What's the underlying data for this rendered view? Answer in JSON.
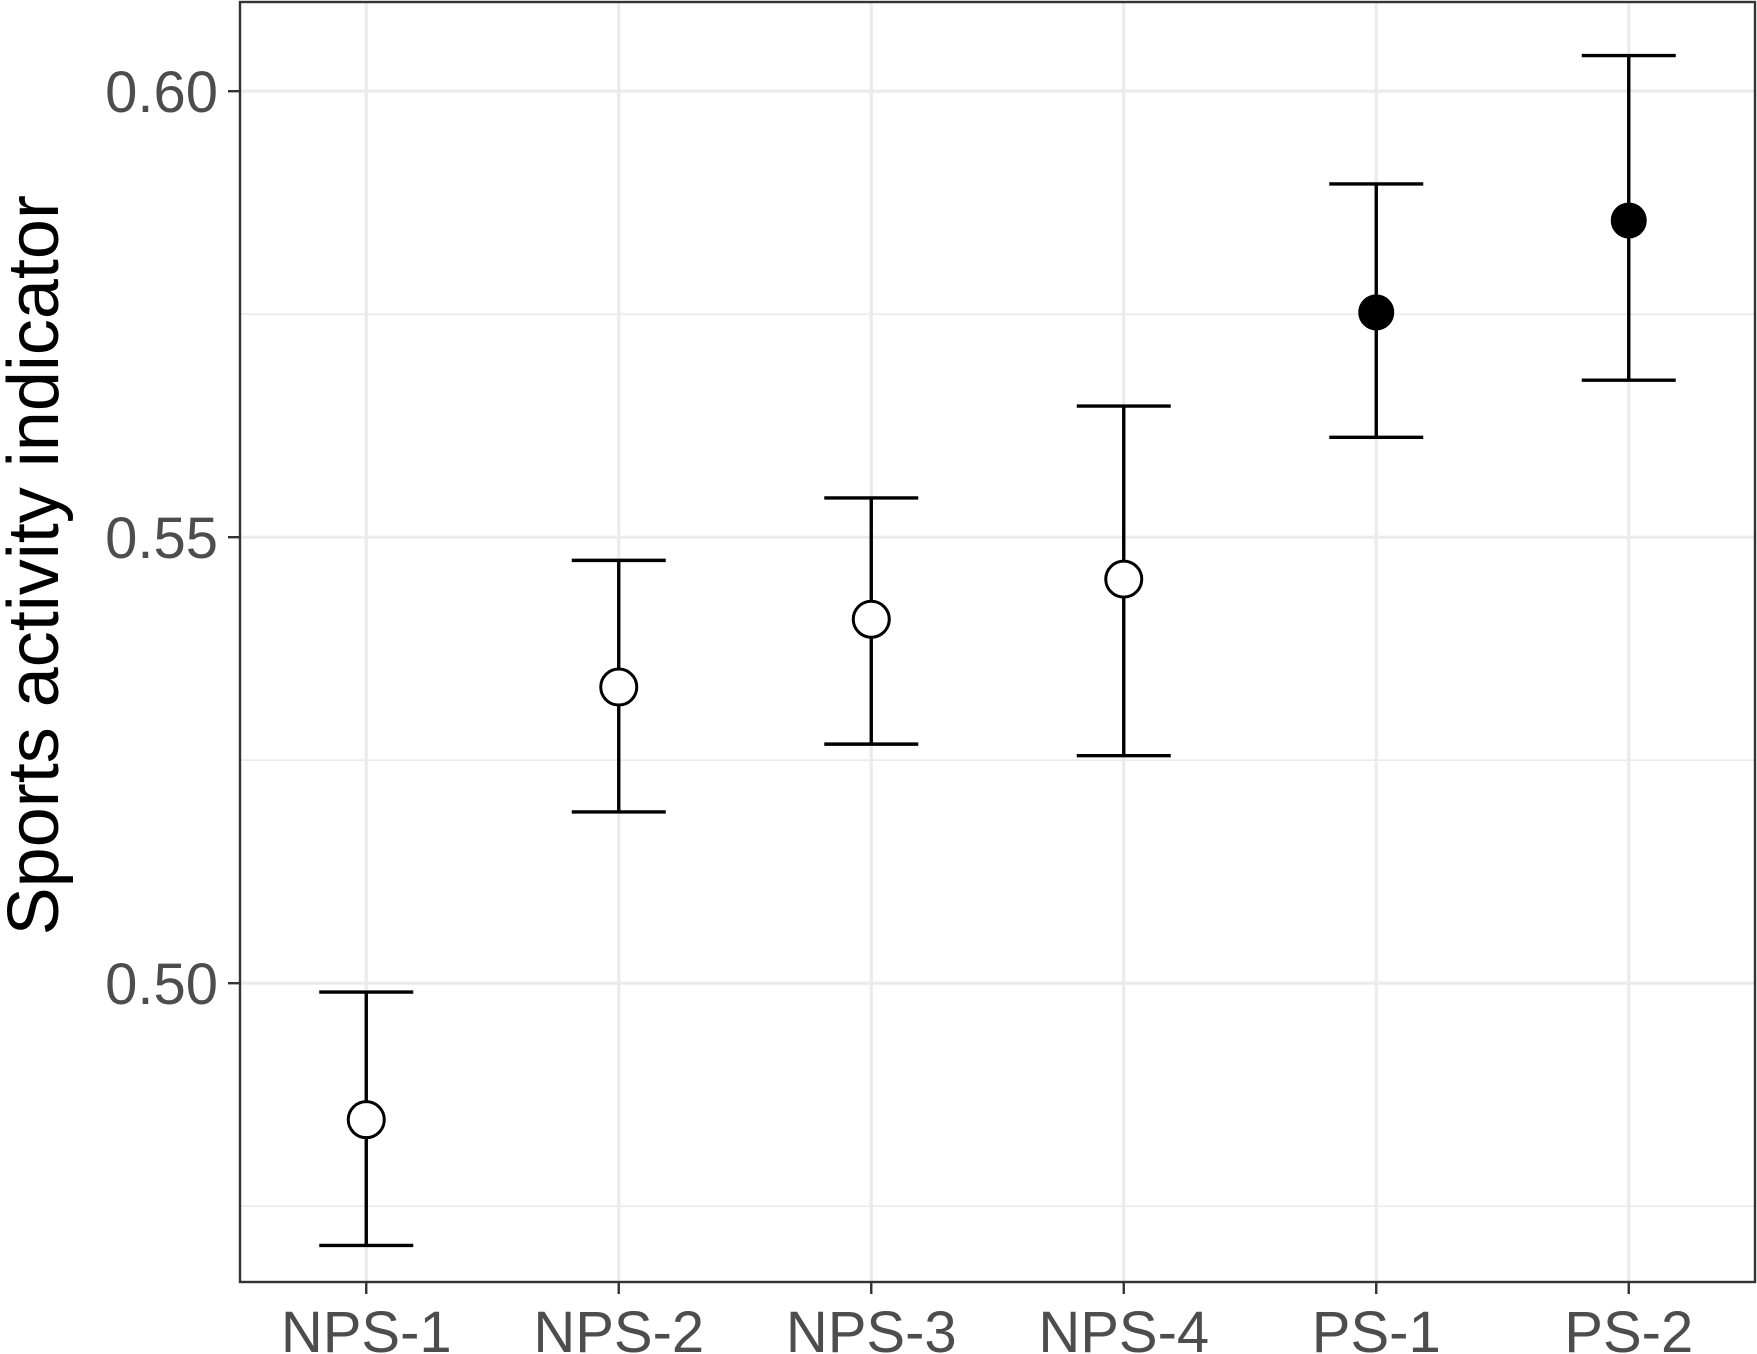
{
  "chart_data": {
    "type": "scatter",
    "title": "",
    "xlabel": "",
    "ylabel": "Sports activity indicator",
    "categories": [
      "NPS-1",
      "NPS-2",
      "NPS-3",
      "NPS-4",
      "PS-1",
      "PS-2"
    ],
    "values": [
      0.4847,
      0.5332,
      0.5408,
      0.5453,
      0.5752,
      0.5855
    ],
    "lower": [
      0.4706,
      0.5192,
      0.5268,
      0.5255,
      0.5612,
      0.5676
    ],
    "upper": [
      0.499,
      0.5474,
      0.5544,
      0.5647,
      0.5896,
      0.604
    ],
    "marker": [
      "open",
      "open",
      "open",
      "open",
      "filled",
      "filled"
    ],
    "ylim": [
      0.4665,
      0.61
    ],
    "yticks": [
      "0.50",
      "0.55",
      "0.60"
    ],
    "ytick_values": [
      0.5,
      0.55,
      0.6
    ],
    "minor_yticks": [
      0.475,
      0.525,
      0.575
    ],
    "grid": true,
    "legend": "none",
    "colors": {
      "points": "#000000",
      "grid": "#ebebeb",
      "panel_border": "#333333",
      "tick_text": "#4d4d4d"
    }
  }
}
